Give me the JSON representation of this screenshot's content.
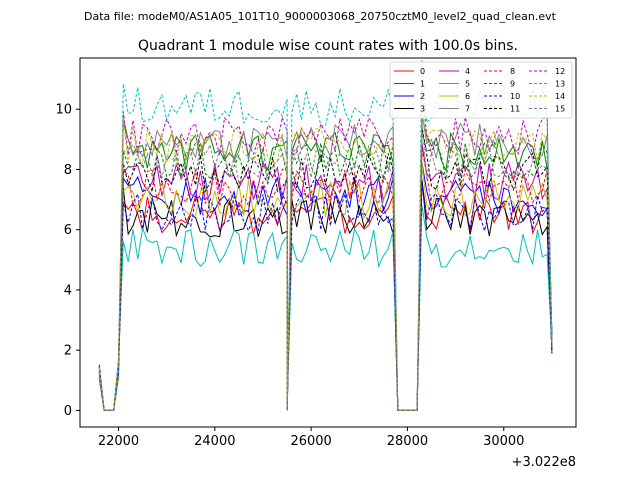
{
  "suptitle": "Data file: modeM0/AS1A05_101T10_9000003068_20750cztM0_level2_quad_clean.evt",
  "chart_data": {
    "type": "line",
    "title": "Quadrant 1 module wise count rates with 100.0s bins.",
    "xlabel": "",
    "ylabel": "",
    "x_offset_label": "+3.022e8",
    "xlim": [
      21200,
      31500
    ],
    "ylim": [
      -0.55,
      11.7
    ],
    "x_ticks": [
      22000,
      24000,
      26000,
      28000,
      30000
    ],
    "y_ticks": [
      0,
      2,
      4,
      6,
      8,
      10
    ],
    "x_tick_labels": [
      "22000",
      "24000",
      "26000",
      "28000",
      "30000"
    ],
    "y_tick_labels": [
      "0",
      "2",
      "4",
      "6",
      "8",
      "10"
    ],
    "legend_position": "upper-right",
    "segments": [
      {
        "start": 21600,
        "end": 25500,
        "ramp_up": [
          [
            21600,
            1.3
          ],
          [
            21700,
            0.0
          ],
          [
            21800,
            0.0
          ],
          [
            21900,
            0.0
          ],
          [
            22000,
            1.2
          ]
        ]
      },
      {
        "start": 25600,
        "end": 27700
      },
      {
        "start": 28300,
        "end": 31000
      }
    ],
    "gap_value": 0.0,
    "series": [
      {
        "name": "0",
        "color": "#ff0000",
        "style": "solid",
        "level": 6.5
      },
      {
        "name": "1",
        "color": "#008000",
        "style": "solid",
        "level": 8.6
      },
      {
        "name": "2",
        "color": "#0000ff",
        "style": "solid",
        "level": 7.1
      },
      {
        "name": "3",
        "color": "#000000",
        "style": "solid",
        "level": 6.4
      },
      {
        "name": "4",
        "color": "#bf00bf",
        "style": "solid",
        "level": 7.6
      },
      {
        "name": "5",
        "color": "#00bfbf",
        "style": "solid",
        "level": 5.4
      },
      {
        "name": "6",
        "color": "#bfbf00",
        "style": "solid",
        "level": 7.0
      },
      {
        "name": "7",
        "color": "#808080",
        "style": "solid",
        "level": 8.9
      },
      {
        "name": "8",
        "color": "#ff0000",
        "style": "dashed",
        "level": 7.4
      },
      {
        "name": "9",
        "color": "#008000",
        "style": "dashed",
        "level": 8.3
      },
      {
        "name": "10",
        "color": "#0000ff",
        "style": "dashed",
        "level": 6.6
      },
      {
        "name": "11",
        "color": "#000000",
        "style": "dashed",
        "level": 7.9
      },
      {
        "name": "12",
        "color": "#bf00bf",
        "style": "dashed",
        "level": 9.1
      },
      {
        "name": "13",
        "color": "#00bfbf",
        "style": "dashed",
        "level": 10.1
      },
      {
        "name": "14",
        "color": "#bfbf00",
        "style": "dashed",
        "level": 8.8
      },
      {
        "name": "15",
        "color": "#808080",
        "style": "dashed",
        "level": 8.2
      }
    ]
  }
}
